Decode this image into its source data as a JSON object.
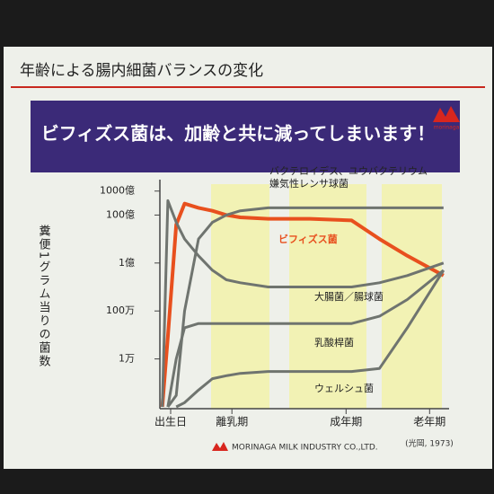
{
  "slide": {
    "title": "年齢による腸内細菌バランスの変化",
    "banner": "ビフィズス菌は、加齢と共に減ってしまいます！",
    "logo": "morinaga"
  },
  "footer": {
    "company": "MORINAGA MILK INDUSTRY CO.,LTD.",
    "source": "(光岡, 1973)"
  },
  "chart_data": {
    "type": "line",
    "log_scale": true,
    "y_label": "糞便1グラム当りの菌数",
    "x": [
      -3,
      -1,
      2,
      5,
      10,
      15,
      20,
      25,
      35,
      50,
      65,
      75,
      85,
      98
    ],
    "xlim": [
      -4,
      100
    ],
    "xticks": [
      {
        "value": 0,
        "label": "出生日"
      },
      {
        "value": 22,
        "label": "離乳期"
      },
      {
        "value": 63,
        "label": "成年期"
      },
      {
        "value": 93,
        "label": "老年期"
      }
    ],
    "ylim": [
      100,
      300000000000
    ],
    "yticks": [
      {
        "value": 10000,
        "label": "1万"
      },
      {
        "value": 1000000,
        "label": "100万"
      },
      {
        "value": 100000000,
        "label": "1億"
      },
      {
        "value": 10000000000,
        "label": "100億"
      },
      {
        "value": 100000000000,
        "label": "1000億"
      }
    ],
    "series": [
      {
        "name": "ビフィズス菌",
        "color": "#e8501e",
        "values": [
          100,
          85000,
          4000000000,
          30000000000,
          20000000000,
          15000000000,
          10000000000,
          8000000000,
          7000000000,
          7000000000,
          6000000000,
          1000000000,
          200000000,
          30000000
        ]
      },
      {
        "name": [
          "バクテロイデス、ユウバクテリウム",
          "嫌気性レンサ球菌"
        ],
        "color": "#6f746f",
        "values": [
          null,
          100,
          300,
          1000000,
          1000000000,
          5000000000,
          10000000000,
          15000000000,
          20000000000,
          20000000000,
          20000000000,
          20000000000,
          20000000000,
          20000000000
        ]
      },
      {
        "name": "大腸菌／腸球菌",
        "color": "#6f746f",
        "values": [
          100,
          40000000000,
          5000000000,
          1000000000,
          200000000,
          50000000,
          20000000,
          15000000,
          10000000,
          10000000,
          10000000,
          15000000,
          30000000,
          100000000
        ]
      },
      {
        "name": "乳酸桿菌",
        "color": "#6f746f",
        "values": [
          null,
          100,
          10000,
          200000,
          300000,
          300000,
          300000,
          300000,
          300000,
          300000,
          300000,
          600000,
          3000000,
          50000000
        ]
      },
      {
        "name": "ウェルシュ菌",
        "color": "#6f746f",
        "values": [
          null,
          null,
          100,
          150,
          500,
          1500,
          2000,
          2500,
          3000,
          3000,
          3000,
          4000,
          200000,
          50000000
        ]
      }
    ]
  }
}
